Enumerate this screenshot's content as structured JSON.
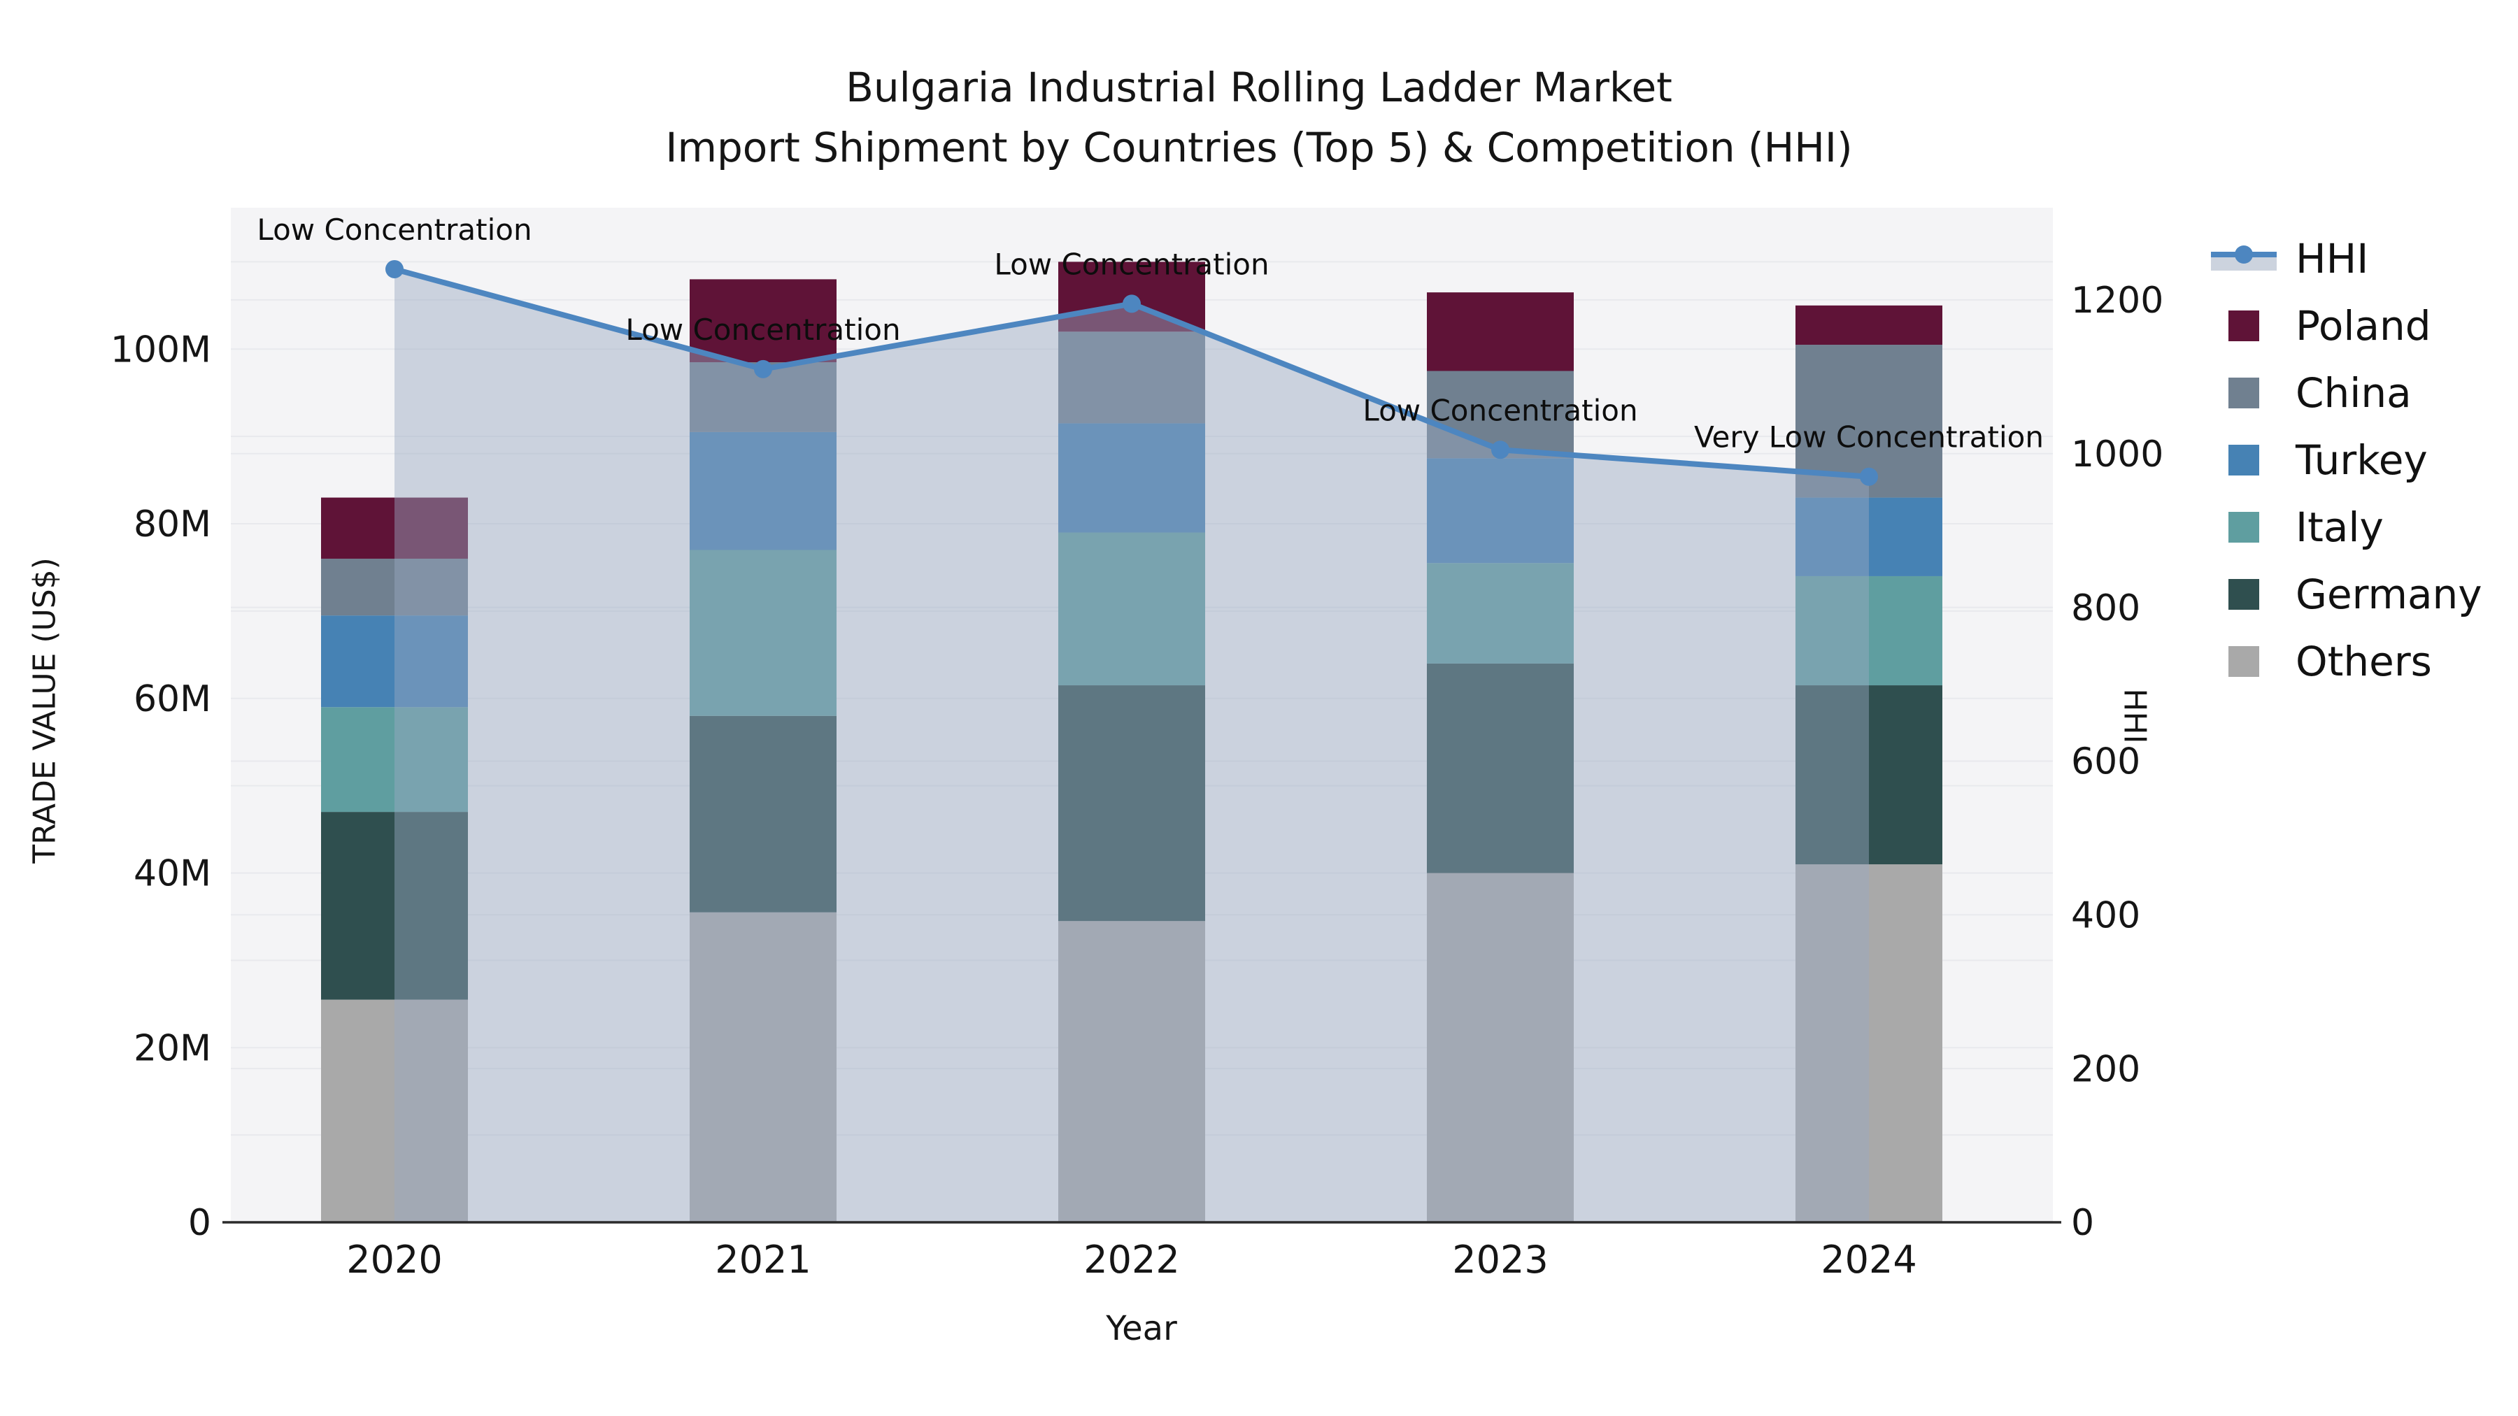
{
  "chart_data": {
    "type": "combo-stacked-bar-line",
    "title": "Bulgaria Industrial Rolling Ladder Market",
    "subtitle": "Import Shipment by Countries (Top 5) & Competition (HHI)",
    "xlabel": "Year",
    "ylabel_left": "TRADE VALUE (US$)",
    "ylabel_right": "HHI",
    "categories": [
      "2020",
      "2021",
      "2022",
      "2023",
      "2024"
    ],
    "value_unit": "million US$",
    "series": [
      {
        "name": "Others",
        "color": "#a9a9a9",
        "values": [
          25.5,
          35.5,
          34.5,
          40.0,
          41.0
        ]
      },
      {
        "name": "Germany",
        "color": "#2f4f4f",
        "values": [
          21.5,
          22.5,
          27.0,
          24.0,
          20.5
        ]
      },
      {
        "name": "Italy",
        "color": "#5f9ea0",
        "values": [
          12.0,
          19.0,
          17.5,
          11.5,
          12.5
        ]
      },
      {
        "name": "Turkey",
        "color": "#4682b4",
        "values": [
          10.5,
          13.5,
          12.5,
          12.0,
          9.0
        ]
      },
      {
        "name": "China",
        "color": "#708090",
        "values": [
          6.5,
          8.0,
          10.5,
          10.0,
          17.5
        ]
      },
      {
        "name": "Poland",
        "color": "#5f1337",
        "values": [
          7.0,
          9.5,
          8.0,
          9.0,
          4.5
        ]
      }
    ],
    "bar_totals": [
      83.0,
      108.0,
      110.0,
      106.5,
      105.0
    ],
    "line": {
      "name": "HHI",
      "color": "#4d86c0",
      "area_fill": "rgba(153,168,192,0.45)",
      "values": [
        1240,
        1110,
        1195,
        1005,
        970
      ]
    },
    "annotations": [
      {
        "year": "2020",
        "text": "Low Concentration"
      },
      {
        "year": "2021",
        "text": "Low Concentration"
      },
      {
        "year": "2022",
        "text": "Low Concentration"
      },
      {
        "year": "2023",
        "text": "Low Concentration"
      },
      {
        "year": "2024",
        "text": "Very Low Concentration"
      }
    ],
    "axis_left": {
      "tick_labels": [
        "0",
        "20M",
        "40M",
        "60M",
        "80M",
        "100M"
      ],
      "tick_values": [
        0,
        20,
        40,
        60,
        80,
        100
      ],
      "range": [
        0,
        116.2
      ]
    },
    "axis_right": {
      "tick_labels": [
        "0",
        "200",
        "400",
        "600",
        "800",
        "1000",
        "1200"
      ],
      "tick_values": [
        0,
        200,
        400,
        600,
        800,
        1000,
        1200
      ],
      "range": [
        0,
        1320
      ]
    },
    "grid": {
      "left_step": 10,
      "right_step": 200,
      "color": "#e8e9ed"
    },
    "plot_bg": "#f4f4f6",
    "spine_color": "#2b2b2b",
    "text_color": "#151515",
    "legend": {
      "items": [
        {
          "label": "HHI",
          "type": "line",
          "color": "#4d86c0"
        },
        {
          "label": "Poland",
          "type": "box",
          "color": "#5f1337"
        },
        {
          "label": "China",
          "type": "box",
          "color": "#708090"
        },
        {
          "label": "Turkey",
          "type": "box",
          "color": "#4682b4"
        },
        {
          "label": "Italy",
          "type": "box",
          "color": "#5f9ea0"
        },
        {
          "label": "Germany",
          "type": "box",
          "color": "#2f4f4f"
        },
        {
          "label": "Others",
          "type": "box",
          "color": "#a9a9a9"
        }
      ]
    }
  }
}
